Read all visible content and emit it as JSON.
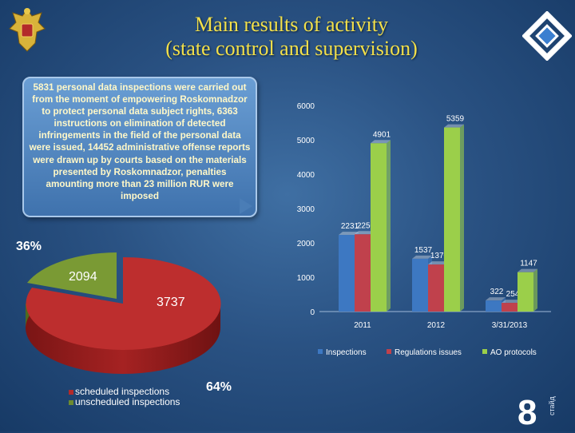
{
  "title": {
    "line1": "Main results of activity",
    "line2": "(state control and supervision)"
  },
  "callout": {
    "text": "5831 personal data inspections were carried out from the moment of empowering Roskomnadzor to protect personal data subject rights, 6363 instructions on elimination of detected infringements in the field of the personal data were issued, 14452 administrative offense reports were drawn up by courts based on the materials presented by Roskomnadzor, penalties amounting more than 23 million RUR were imposed"
  },
  "pie": {
    "pct_small": "36%",
    "pct_large": "64%",
    "value_unscheduled": "2094",
    "value_scheduled": "3737",
    "legend": [
      "scheduled inspections",
      "unscheduled inspections"
    ],
    "colors": {
      "scheduled": "#b32a2a",
      "unscheduled": "#6d8b2f"
    }
  },
  "page_number": "8",
  "vertical_text": "стайд",
  "icons": {
    "emblem": "coat-of-arms-icon",
    "logo": "roskomnadzor-logo-icon"
  },
  "chart_data": {
    "type": "bar",
    "categories": [
      "2011",
      "2012",
      "3/31/2013"
    ],
    "series": [
      {
        "name": "Inspections",
        "color": "#3d78c2",
        "values": [
          2231,
          1537,
          322
        ]
      },
      {
        "name": "Regulations issues",
        "color": "#c0414c",
        "values": [
          2250,
          1370,
          254
        ]
      },
      {
        "name": "AO protocols",
        "color": "#9bcf4a",
        "values": [
          4901,
          5359,
          1147
        ]
      }
    ],
    "data_labels": [
      "2231",
      "2250",
      "4901",
      "1537",
      "1370",
      "5359",
      "322",
      "254",
      "1147"
    ],
    "y_ticks": [
      "0",
      "1000",
      "2000",
      "3000",
      "4000",
      "5000",
      "6000"
    ],
    "ylim": [
      0,
      6000
    ],
    "grid": false,
    "legend_position": "bottom"
  }
}
